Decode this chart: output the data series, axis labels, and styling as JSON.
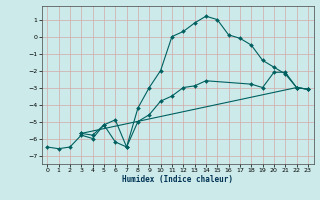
{
  "xlabel": "Humidex (Indice chaleur)",
  "bg_color": "#cceaea",
  "grid_color": "#d4a8a8",
  "line_color": "#006060",
  "xlim": [
    -0.5,
    23.5
  ],
  "ylim": [
    -7.5,
    1.8
  ],
  "xticks": [
    0,
    1,
    2,
    3,
    4,
    5,
    6,
    7,
    8,
    9,
    10,
    11,
    12,
    13,
    14,
    15,
    16,
    17,
    18,
    19,
    20,
    21,
    22,
    23
  ],
  "yticks": [
    1,
    0,
    -1,
    -2,
    -3,
    -4,
    -5,
    -6,
    -7
  ],
  "line1_x": [
    0,
    1,
    2,
    3,
    4,
    5,
    6,
    7,
    8,
    9,
    10,
    11,
    12,
    13,
    14,
    15,
    16,
    17,
    18,
    19,
    20,
    21,
    22,
    23
  ],
  "line1_y": [
    -6.5,
    -6.6,
    -6.5,
    -5.8,
    -6.0,
    -5.2,
    -6.2,
    -6.5,
    -4.2,
    -3.0,
    -2.0,
    0.0,
    0.3,
    0.8,
    1.2,
    1.0,
    0.1,
    -0.1,
    -0.5,
    -1.4,
    -1.8,
    -2.2,
    -3.0,
    -3.1
  ],
  "line2_x": [
    3,
    4,
    5,
    6,
    7,
    8,
    9,
    10,
    11,
    12,
    13,
    14,
    18,
    19,
    20,
    21,
    22,
    23
  ],
  "line2_y": [
    -5.7,
    -5.8,
    -5.2,
    -4.9,
    -6.5,
    -5.0,
    -4.6,
    -3.8,
    -3.5,
    -3.0,
    -2.9,
    -2.6,
    -2.8,
    -3.0,
    -2.1,
    -2.1,
    -3.0,
    -3.1
  ],
  "line3_x": [
    3,
    22,
    23
  ],
  "line3_y": [
    -5.7,
    -3.0,
    -3.1
  ]
}
